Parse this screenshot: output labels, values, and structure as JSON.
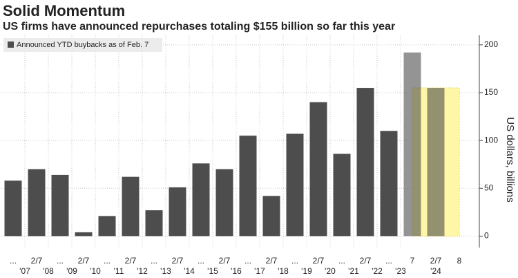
{
  "chart_data": {
    "type": "bar",
    "title": "Solid Momentum",
    "subtitle": "US firms have announced repurchases totaling $155 billion so far this year",
    "y_axis_label": "US dollars, billions",
    "categories": [
      "...",
      "2/7",
      "...",
      "2/7",
      "...",
      "2/7",
      "...",
      "2/7",
      "...",
      "2/7",
      "...",
      "2/7",
      "...",
      "2/7",
      "...",
      "2/7",
      "...",
      "7",
      "2/7",
      "8"
    ],
    "year_labels": [
      "'07",
      "'08",
      "'09",
      "'10",
      "'11",
      "'12",
      "'13",
      "'14",
      "'15",
      "'16",
      "'17",
      "'18",
      "'19",
      "'20",
      "'21",
      "'22",
      "'23",
      "'24"
    ],
    "series": [
      {
        "name": "Announced YTD buybacks as of Feb. 7",
        "color": "#4d4d4d",
        "values": [
          58,
          70,
          64,
          4,
          21,
          62,
          27,
          51,
          76,
          70,
          105,
          42,
          107,
          140,
          86,
          155,
          110,
          192,
          155,
          null
        ]
      }
    ],
    "highlight": {
      "from": 17,
      "to": 19,
      "value": 155,
      "color": "#fff7a8"
    },
    "ylim": [
      -12,
      210
    ],
    "yticks": [
      0,
      50,
      100,
      150,
      200
    ],
    "grid": true
  }
}
